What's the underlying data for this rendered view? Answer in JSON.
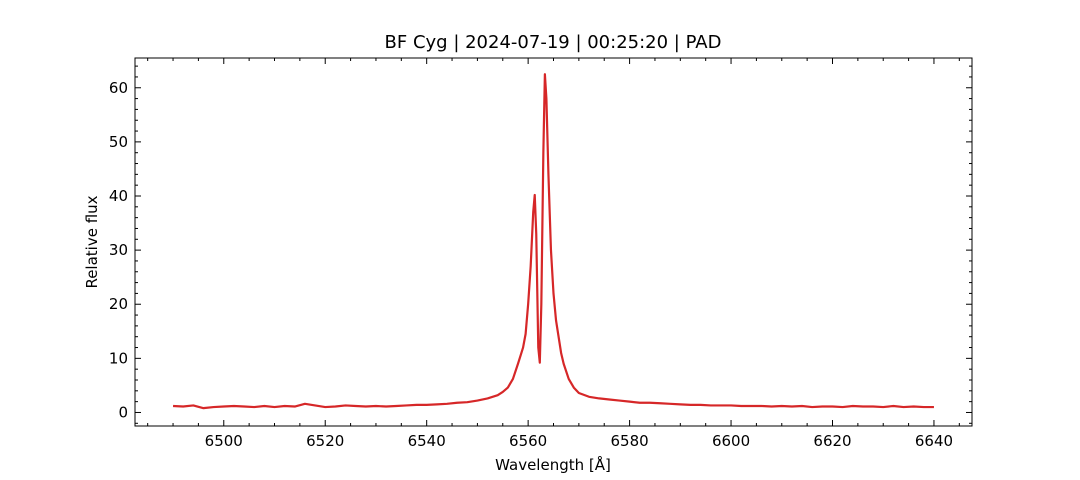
{
  "chart_data": {
    "type": "line",
    "title": "BF Cyg | 2024-07-19 | 00:25:20 | PAD",
    "xlabel": "Wavelength [Å]",
    "ylabel": "Relative flux",
    "xlim": [
      6482.5,
      6647.5
    ],
    "ylim": [
      -2.5,
      65.5
    ],
    "x_ticks": [
      6500,
      6520,
      6540,
      6560,
      6580,
      6600,
      6620,
      6640
    ],
    "y_ticks": [
      0,
      10,
      20,
      30,
      40,
      50,
      60
    ],
    "x_minor_step": 5,
    "y_minor_step": 2,
    "grid": false,
    "series": [
      {
        "color": "#d62728",
        "x": [
          6490,
          6492,
          6494,
          6496,
          6498,
          6500,
          6502,
          6504,
          6506,
          6508,
          6510,
          6512,
          6514,
          6516,
          6518,
          6520,
          6522,
          6524,
          6526,
          6528,
          6530,
          6532,
          6534,
          6536,
          6538,
          6540,
          6542,
          6544,
          6546,
          6548,
          6550,
          6552,
          6554,
          6555,
          6556,
          6557,
          6558,
          6558.5,
          6559,
          6559.5,
          6560,
          6560.5,
          6561,
          6561.3,
          6561.6,
          6562,
          6562.3,
          6562.6,
          6563,
          6563.3,
          6563.6,
          6564,
          6564.5,
          6565,
          6565.5,
          6566,
          6566.5,
          6567,
          6568,
          6569,
          6570,
          6572,
          6574,
          6576,
          6578,
          6580,
          6582,
          6584,
          6586,
          6588,
          6590,
          6592,
          6594,
          6596,
          6598,
          6600,
          6602,
          6604,
          6606,
          6608,
          6610,
          6612,
          6614,
          6616,
          6618,
          6620,
          6622,
          6624,
          6626,
          6628,
          6630,
          6632,
          6634,
          6636,
          6638,
          6640
        ],
        "y": [
          1.2,
          1.1,
          1.3,
          0.8,
          1.0,
          1.1,
          1.2,
          1.1,
          1.0,
          1.2,
          1.0,
          1.2,
          1.1,
          1.6,
          1.3,
          1.0,
          1.1,
          1.3,
          1.2,
          1.1,
          1.2,
          1.1,
          1.2,
          1.3,
          1.4,
          1.4,
          1.5,
          1.6,
          1.8,
          1.9,
          2.2,
          2.6,
          3.2,
          3.8,
          4.6,
          6.2,
          9.0,
          10.5,
          12.0,
          14.5,
          20.0,
          27.0,
          37.0,
          40.2,
          33.0,
          12.0,
          9.2,
          20.0,
          48.0,
          62.5,
          58.0,
          44.0,
          30.0,
          22.0,
          17.0,
          14.0,
          11.0,
          9.0,
          6.2,
          4.6,
          3.6,
          2.9,
          2.6,
          2.4,
          2.2,
          2.0,
          1.8,
          1.8,
          1.7,
          1.6,
          1.5,
          1.4,
          1.4,
          1.3,
          1.3,
          1.3,
          1.2,
          1.2,
          1.2,
          1.1,
          1.2,
          1.1,
          1.2,
          1.0,
          1.1,
          1.1,
          1.0,
          1.2,
          1.1,
          1.1,
          1.0,
          1.2,
          1.0,
          1.1,
          1.0,
          1.0
        ]
      }
    ]
  }
}
